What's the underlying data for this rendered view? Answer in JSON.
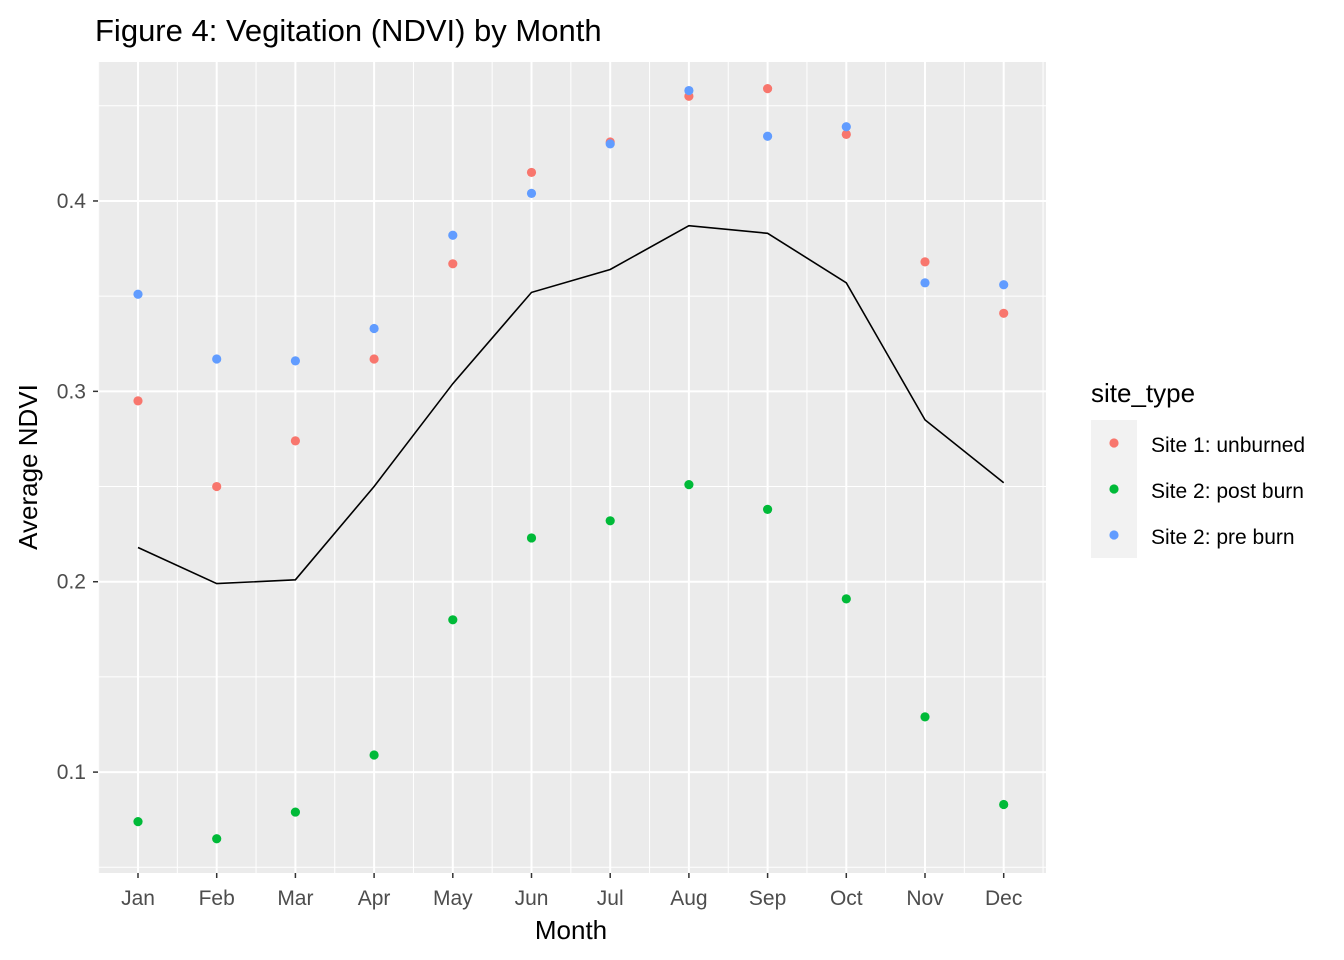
{
  "chart_data": {
    "type": "scatter",
    "title": "Figure 4: Vegitation (NDVI) by Month",
    "xlabel": "Month",
    "ylabel": "Average NDVI",
    "categories": [
      "Jan",
      "Feb",
      "Mar",
      "Apr",
      "May",
      "Jun",
      "Jul",
      "Aug",
      "Sep",
      "Oct",
      "Nov",
      "Dec"
    ],
    "ylim": [
      0.047,
      0.473
    ],
    "yticks": [
      0.1,
      0.2,
      0.3,
      0.4
    ],
    "ytick_labels": [
      "0.1",
      "0.2",
      "0.3",
      "0.4"
    ],
    "grid": true,
    "legend": {
      "title": "site_type",
      "placement": "right"
    },
    "series": [
      {
        "name": "Site 1: unburned",
        "color": "#F8766D",
        "values": [
          0.295,
          0.25,
          0.274,
          0.317,
          0.367,
          0.415,
          0.431,
          0.455,
          0.459,
          0.435,
          0.368,
          0.341
        ]
      },
      {
        "name": "Site 2: post burn",
        "color": "#00BA38",
        "values": [
          0.074,
          0.065,
          0.079,
          0.109,
          0.18,
          0.223,
          0.232,
          0.251,
          0.238,
          0.191,
          0.129,
          0.083
        ]
      },
      {
        "name": "Site 2: pre burn",
        "color": "#619CFF",
        "values": [
          0.351,
          0.317,
          0.316,
          0.333,
          0.382,
          0.404,
          0.43,
          0.458,
          0.434,
          0.439,
          0.357,
          0.356
        ]
      }
    ],
    "line": {
      "color": "#000000",
      "values": [
        0.218,
        0.199,
        0.201,
        0.25,
        0.304,
        0.352,
        0.364,
        0.387,
        0.383,
        0.357,
        0.285,
        0.252
      ]
    }
  }
}
